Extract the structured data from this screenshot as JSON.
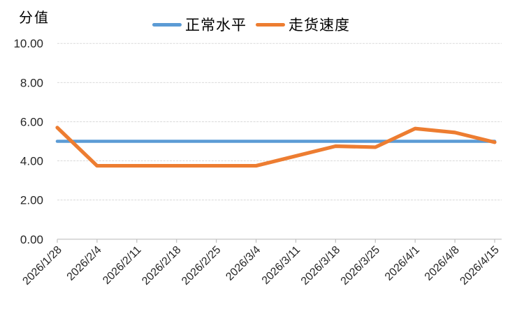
{
  "chart_data": {
    "type": "line",
    "categories": [
      "2026/1/28",
      "2026/2/4",
      "2026/2/11",
      "2026/2/18",
      "2026/2/25",
      "2026/3/4",
      "2026/3/11",
      "2026/3/18",
      "2026/3/25",
      "2026/4/1",
      "2026/4/8",
      "2026/4/15"
    ],
    "series": [
      {
        "name": "正常水平",
        "color": "#5B9BD5",
        "values": [
          5.0,
          5.0,
          5.0,
          5.0,
          5.0,
          5.0,
          5.0,
          5.0,
          5.0,
          5.0,
          5.0,
          5.0
        ]
      },
      {
        "name": "走货速度",
        "color": "#ED7D31",
        "values": [
          5.7,
          3.75,
          3.75,
          3.75,
          3.75,
          3.75,
          4.25,
          4.75,
          4.7,
          5.65,
          5.45,
          4.95
        ]
      }
    ],
    "title": "",
    "xlabel": "",
    "ylabel": "分值",
    "ylim": [
      0,
      10
    ],
    "y_ticks": [
      "0.00",
      "2.00",
      "4.00",
      "6.00",
      "8.00",
      "10.00"
    ],
    "grid": true,
    "legend_position": "top-center",
    "colors": {
      "gridline": "#D9D9D9",
      "axis_line": "#BFBFBF",
      "tick_label": "#262626",
      "background": "#FFFFFF"
    }
  }
}
